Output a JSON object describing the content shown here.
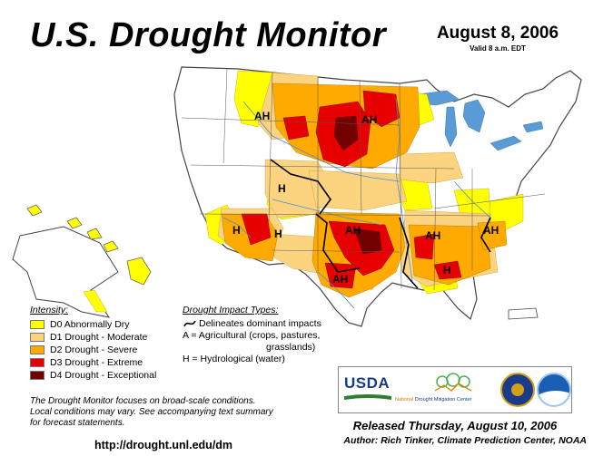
{
  "title": "U.S. Drought Monitor",
  "date": "August 8, 2006",
  "valid": "Valid 8 a.m. EDT",
  "map_labels": [
    "AH",
    "AH",
    "H",
    "H",
    "H",
    "AH",
    "AH",
    "AH",
    "H",
    "AH"
  ],
  "colors": {
    "D0": "#ffff00",
    "D1": "#fcd37f",
    "D2": "#ffaa00",
    "D3": "#e60000",
    "D4": "#730000",
    "water": "#5b9bd5",
    "rivers": "#4a8fd4"
  },
  "intensity": {
    "heading": "Intensity:",
    "items": [
      {
        "code": "D0",
        "label": "D0 Abnormally Dry"
      },
      {
        "code": "D1",
        "label": "D1 Drought - Moderate"
      },
      {
        "code": "D2",
        "label": "D2 Drought - Severe"
      },
      {
        "code": "D3",
        "label": "D3 Drought - Extreme"
      },
      {
        "code": "D4",
        "label": "D4 Drought - Exceptional"
      }
    ]
  },
  "impacts": {
    "heading": "Drought Impact Types:",
    "line1": "Delineates dominant impacts",
    "line2": "A = Agricultural (crops, pastures,",
    "line3": "grasslands)",
    "line4": "H = Hydrological (water)"
  },
  "note": {
    "line1": "The Drought Monitor focuses on broad-scale conditions.",
    "line2": "Local conditions may vary. See accompanying text summary",
    "line3": "for forecast statements."
  },
  "url": "http://drought.unl.edu/dm",
  "logos": {
    "usda": "USDA",
    "ndmc_prefix": "National",
    "ndmc_name": "Drought Mitigation Center"
  },
  "released": "Released Thursday, August 10, 2006",
  "author": "Author: Rich Tinker, Climate Prediction Center, NOAA"
}
